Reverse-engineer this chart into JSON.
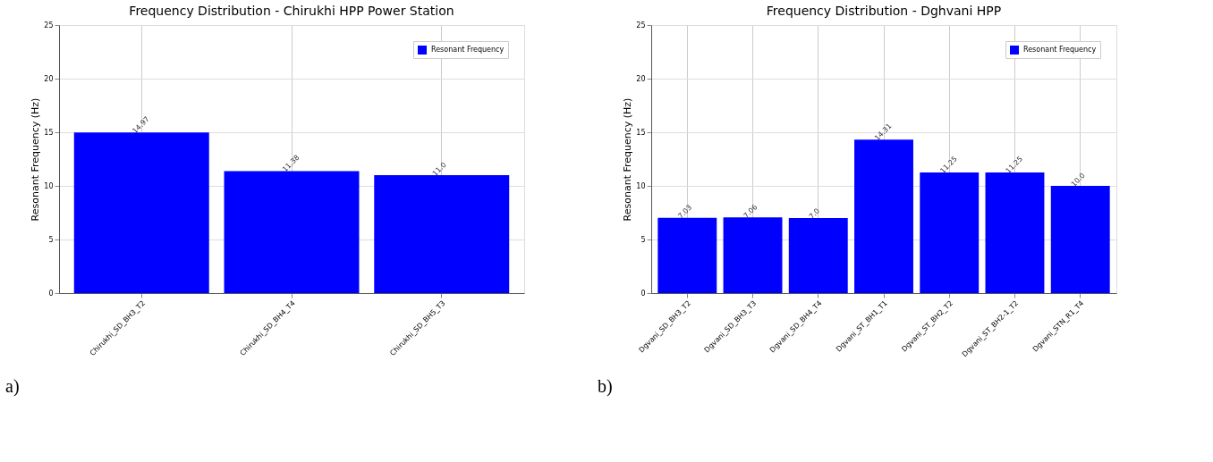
{
  "chart_data": [
    {
      "type": "bar",
      "title": "Frequency Distribution - Chirukhi HPP Power Station",
      "ylabel": "Resonant Frequency (Hz)",
      "categories": [
        "Chirukhi_SD_BH3_T2",
        "Chirukhi_SD_BH4_T4",
        "Chirukhi_SD_BH5_T3"
      ],
      "series": [
        {
          "name": "Resonant Frequency",
          "color": "#0000ff",
          "values": [
            14.97,
            11.38,
            11.0
          ],
          "value_labels": [
            "14.97",
            "11.38",
            "11.0"
          ]
        }
      ],
      "ylim": [
        0,
        25
      ],
      "yticks": [
        0,
        5,
        10,
        15,
        20,
        25
      ],
      "grid": true,
      "legend": "top right",
      "annotations": [
        "a)"
      ]
    },
    {
      "type": "bar",
      "title": "Frequency Distribution - Dghvani HPP",
      "ylabel": "Resonant Frequency (Hz)",
      "categories": [
        "Dgvani_SD_BH3_T2",
        "Dgvani_SD_BH3_T3",
        "Dgvani_SD_BH4_T4",
        "Dgvani_ST_BH1_T1",
        "Dgvani_ST_BH2_T2",
        "Dgvani_ST_BH2-1_T2",
        "Dgvani_STN_R1_T4"
      ],
      "series": [
        {
          "name": "Resonant Frequency",
          "color": "#0000ff",
          "values": [
            7.03,
            7.06,
            7.0,
            14.31,
            11.25,
            11.25,
            10.0
          ],
          "value_labels": [
            "7.03",
            "7.06",
            "7.0",
            "14.31",
            "11.25",
            "11.25",
            "10.0"
          ]
        }
      ],
      "ylim": [
        0,
        25
      ],
      "yticks": [
        0,
        5,
        10,
        15,
        20,
        25
      ],
      "grid": true,
      "legend": "top right",
      "annotations": [
        "b)"
      ]
    }
  ]
}
